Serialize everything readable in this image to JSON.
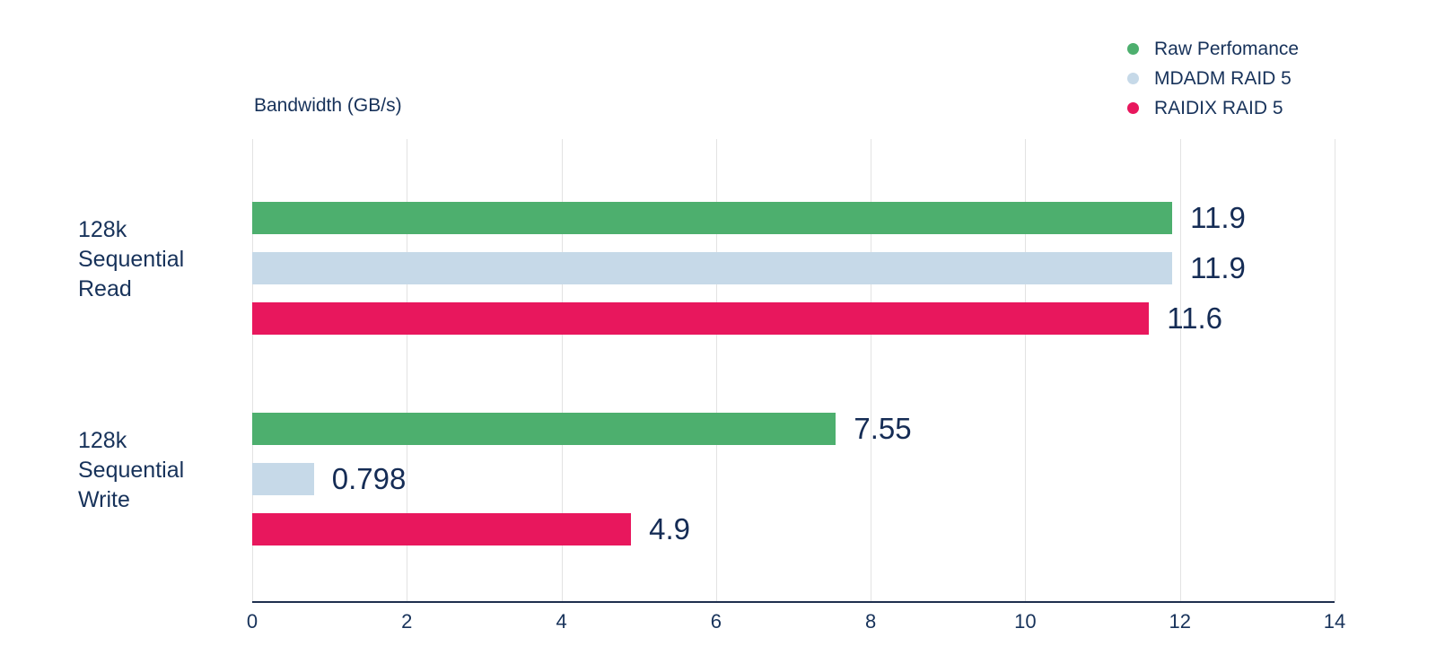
{
  "chart_data": {
    "type": "bar",
    "orientation": "horizontal",
    "axis_title": "Bandwidth (GB/s)",
    "xlim": [
      0,
      14
    ],
    "xticks": [
      0,
      2,
      4,
      6,
      8,
      10,
      12,
      14
    ],
    "xtick_labels": [
      "0",
      "2",
      "4",
      "6",
      "8",
      "10",
      "12",
      "14"
    ],
    "grid": true,
    "legend_position": "top-right",
    "categories": [
      {
        "label": "128k Sequential Read",
        "lines": [
          "128k",
          "Sequential",
          "Read"
        ]
      },
      {
        "label": "128k Sequential Write",
        "lines": [
          "128k",
          "Sequential",
          "Write"
        ]
      }
    ],
    "series": [
      {
        "name": "Raw Perfomance",
        "color": "#4daf6e",
        "values": [
          11.9,
          7.55
        ],
        "value_labels": [
          "11.9",
          "7.55"
        ]
      },
      {
        "name": "MDADM RAID 5",
        "color": "#c6d9e8",
        "values": [
          11.9,
          0.798
        ],
        "value_labels": [
          "11.9",
          "0.798"
        ]
      },
      {
        "name": "RAIDIX RAID 5",
        "color": "#e8175d",
        "values": [
          11.6,
          4.9
        ],
        "value_labels": [
          "11.6",
          "4.9"
        ]
      }
    ]
  },
  "colors": {
    "text": "#17325a",
    "value_text": "#152c55",
    "axis_line": "#1e2f4e",
    "gridline": "#e3e3e3",
    "background": "#ffffff"
  }
}
